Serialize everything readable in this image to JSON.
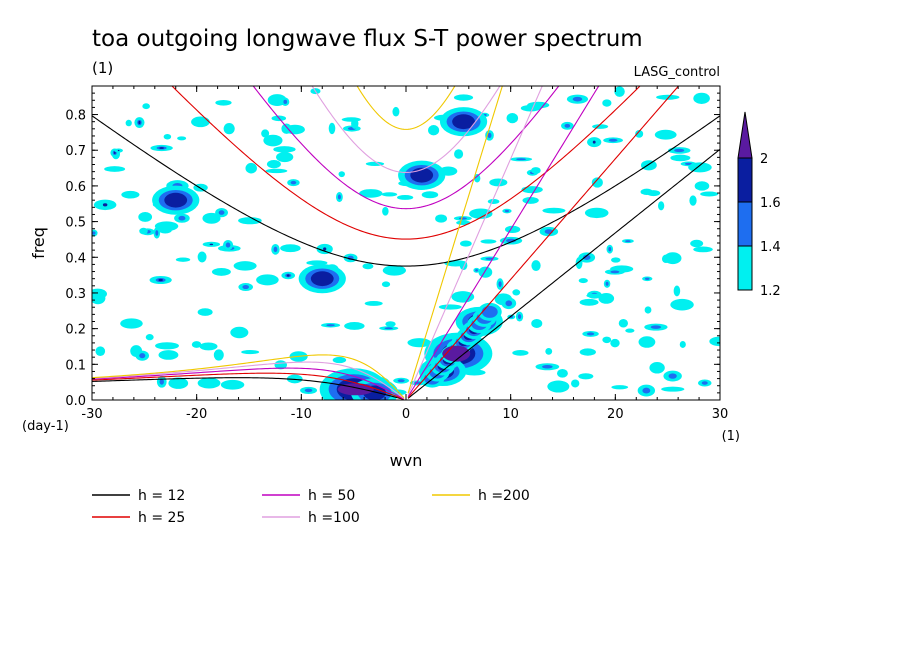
{
  "chart_data": {
    "type": "contour",
    "title": "toa outgoing longwave flux S-T power spectrum",
    "unit_top_left": "(1)",
    "subtitle_right": "LASG_control",
    "xlabel": "wvn",
    "ylabel": "freq",
    "x_unit": "(1)",
    "y_unit": "(day-1)",
    "xlim": [
      -30,
      30
    ],
    "ylim": [
      0,
      0.88
    ],
    "x_ticks": [
      -30,
      -20,
      -10,
      0,
      10,
      20,
      30
    ],
    "x_tick_labels": [
      "-30",
      "-20",
      "-10",
      "0",
      "10",
      "20",
      "30"
    ],
    "y_ticks": [
      0,
      0.1,
      0.2,
      0.3,
      0.4,
      0.5,
      0.6,
      0.7,
      0.8
    ],
    "y_tick_labels": [
      "0.0",
      "0.1",
      "0.2",
      "0.3",
      "0.4",
      "0.5",
      "0.6",
      "0.7",
      "0.8"
    ],
    "colorbar": {
      "levels": [
        "1.2",
        "1.4",
        "1.6",
        "2"
      ],
      "colors": [
        "#00f0f0",
        "#1e6ef0",
        "#0a1ea0",
        "#5a1aa0"
      ]
    },
    "dispersion_curves": [
      {
        "name": "h = 12",
        "h": 12,
        "color": "#000000"
      },
      {
        "name": "h = 25",
        "h": 25,
        "color": "#e00000"
      },
      {
        "name": "h = 50",
        "h": 50,
        "color": "#c000c0"
      },
      {
        "name": "h =100",
        "h": 100,
        "color": "#e0a0e0"
      },
      {
        "name": "h =200",
        "h": 200,
        "color": "#f0c800"
      }
    ],
    "spectral_peaks": [
      {
        "wvn": 5,
        "freq": 0.13,
        "level": 2
      },
      {
        "wvn": 7,
        "freq": 0.22,
        "level": 1.6
      },
      {
        "wvn": 3.5,
        "freq": 0.08,
        "level": 1.6
      },
      {
        "wvn": -5,
        "freq": 0.03,
        "level": 2
      },
      {
        "wvn": -3,
        "freq": 0.02,
        "level": 1.6
      },
      {
        "wvn": -22,
        "freq": 0.56,
        "level": 1.6
      },
      {
        "wvn": 1.5,
        "freq": 0.63,
        "level": 1.6
      },
      {
        "wvn": 5.5,
        "freq": 0.78,
        "level": 1.6
      },
      {
        "wvn": -8,
        "freq": 0.34,
        "level": 1.4
      }
    ]
  }
}
